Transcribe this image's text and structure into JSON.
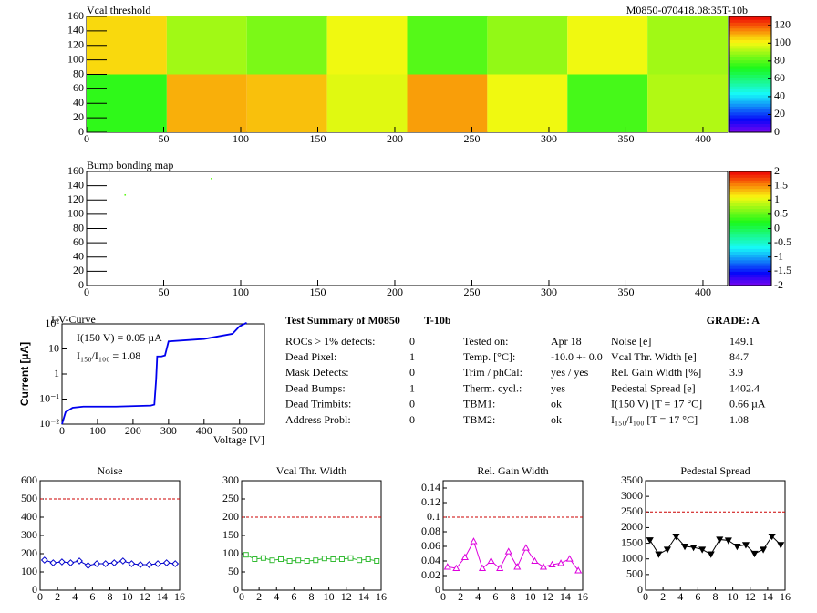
{
  "header": {
    "title": "M0850-070418.08:35T-10b"
  },
  "chart_data": [
    {
      "type": "heatmap",
      "title": "Vcal threshold",
      "xbins": [
        0,
        52,
        104,
        156,
        208,
        260,
        312,
        364,
        416
      ],
      "ybins": [
        0,
        80,
        160
      ],
      "values": [
        [
          75,
          110,
          108,
          98,
          112,
          100,
          78,
          92
        ],
        [
          105,
          90,
          85,
          100,
          80,
          88,
          100,
          90
        ]
      ],
      "zlim": [
        0,
        130
      ],
      "zticks": [
        0,
        20,
        40,
        60,
        80,
        100,
        120
      ],
      "xlim": [
        0,
        416
      ],
      "xticks": [
        0,
        50,
        100,
        150,
        200,
        250,
        300,
        350,
        400
      ],
      "ylim": [
        0,
        160
      ],
      "yticks": [
        0,
        20,
        40,
        60,
        80,
        100,
        120,
        140,
        160
      ]
    },
    {
      "type": "heatmap",
      "title": "Bump bonding map",
      "points": {
        "x": [
          25,
          81
        ],
        "y": [
          127,
          150
        ],
        "z": [
          0.5,
          0.5
        ]
      },
      "zlim": [
        -2,
        2
      ],
      "zticks": [
        -2,
        -1.5,
        -1,
        -0.5,
        0,
        0.5,
        1,
        1.5,
        2
      ],
      "xlim": [
        0,
        416
      ],
      "xticks": [
        0,
        50,
        100,
        150,
        200,
        250,
        300,
        350,
        400
      ],
      "ylim": [
        0,
        160
      ],
      "yticks": [
        0,
        20,
        40,
        60,
        80,
        100,
        120,
        140,
        160
      ]
    },
    {
      "type": "line",
      "title": "I-V-Curve",
      "log_y": true,
      "x_label": "Voltage [V]",
      "y_label": "Current [µA]",
      "annotations": [
        "I(150 V) = 0.05 µA",
        "I₁₅₀/I₁₀₀ =  1.08"
      ],
      "series": [
        {
          "color": "#0000ee",
          "x": [
            0,
            10,
            30,
            60,
            150,
            250,
            260,
            265,
            268,
            280,
            290,
            300,
            400,
            480,
            500,
            520
          ],
          "values": [
            0.01,
            0.03,
            0.045,
            0.05,
            0.05,
            0.055,
            0.06,
            0.6,
            5,
            5,
            5.5,
            20,
            25,
            40,
            80,
            110
          ]
        }
      ],
      "xlim": [
        0,
        570
      ],
      "xticks": [
        0,
        100,
        200,
        300,
        400,
        500
      ],
      "ylim": [
        0.01,
        100
      ],
      "yticks": [
        {
          "value": 0.01,
          "label": "10⁻²"
        },
        {
          "value": 0.1,
          "label": "10⁻¹"
        },
        {
          "value": 1,
          "label": "1"
        },
        {
          "value": 10,
          "label": "10"
        },
        {
          "value": 100,
          "label": "10²"
        }
      ]
    },
    {
      "type": "line",
      "title": "Noise",
      "reference_line": 500,
      "series": [
        {
          "color": "#0000cc",
          "marker": "diamond",
          "x": [
            0.5,
            1.5,
            2.5,
            3.5,
            4.5,
            5.5,
            6.5,
            7.5,
            8.5,
            9.5,
            10.5,
            11.5,
            12.5,
            13.5,
            14.5,
            15.5
          ],
          "values": [
            165,
            150,
            155,
            150,
            160,
            135,
            145,
            145,
            150,
            160,
            145,
            140,
            140,
            145,
            150,
            145
          ]
        }
      ],
      "xlim": [
        0,
        16
      ],
      "xticks": [
        0,
        2,
        4,
        6,
        8,
        10,
        12,
        14,
        16
      ],
      "ylim": [
        0,
        600
      ],
      "yticks": [
        0,
        100,
        200,
        300,
        400,
        500,
        600
      ]
    },
    {
      "type": "line",
      "title": "Vcal Thr. Width",
      "reference_line": 200,
      "series": [
        {
          "color": "#33bb33",
          "marker": "square",
          "x": [
            0.5,
            1.5,
            2.5,
            3.5,
            4.5,
            5.5,
            6.5,
            7.5,
            8.5,
            9.5,
            10.5,
            11.5,
            12.5,
            13.5,
            14.5,
            15.5
          ],
          "values": [
            97,
            85,
            88,
            82,
            85,
            80,
            82,
            80,
            82,
            87,
            85,
            85,
            88,
            82,
            85,
            80
          ]
        }
      ],
      "xlim": [
        0,
        16
      ],
      "xticks": [
        0,
        2,
        4,
        6,
        8,
        10,
        12,
        14,
        16
      ],
      "ylim": [
        0,
        300
      ],
      "yticks": [
        0,
        50,
        100,
        150,
        200,
        250,
        300
      ]
    },
    {
      "type": "line",
      "title": "Rel. Gain Width",
      "reference_line": 0.1,
      "series": [
        {
          "color": "#dd00dd",
          "marker": "triangle",
          "x": [
            0.5,
            1.5,
            2.5,
            3.5,
            4.5,
            5.5,
            6.5,
            7.5,
            8.5,
            9.5,
            10.5,
            11.5,
            12.5,
            13.5,
            14.5,
            15.5
          ],
          "values": [
            0.032,
            0.03,
            0.045,
            0.067,
            0.03,
            0.04,
            0.03,
            0.053,
            0.032,
            0.058,
            0.04,
            0.032,
            0.035,
            0.037,
            0.043,
            0.027
          ]
        }
      ],
      "xlim": [
        0,
        16
      ],
      "xticks": [
        0,
        2,
        4,
        6,
        8,
        10,
        12,
        14,
        16
      ],
      "ylim": [
        0,
        0.15
      ],
      "yticks": [
        0,
        0.02,
        0.04,
        0.06,
        0.08,
        0.1,
        0.12,
        0.14
      ]
    },
    {
      "type": "line",
      "title": "Pedestal Spread",
      "reference_line": 2500,
      "series": [
        {
          "color": "#000000",
          "marker": "triangle-down",
          "x": [
            0.5,
            1.5,
            2.5,
            3.5,
            4.5,
            5.5,
            6.5,
            7.5,
            8.5,
            9.5,
            10.5,
            11.5,
            12.5,
            13.5,
            14.5,
            15.5
          ],
          "values": [
            1600,
            1150,
            1300,
            1720,
            1400,
            1370,
            1300,
            1150,
            1620,
            1590,
            1400,
            1450,
            1170,
            1300,
            1720,
            1450
          ]
        }
      ],
      "xlim": [
        0,
        16
      ],
      "xticks": [
        0,
        2,
        4,
        6,
        8,
        10,
        12,
        14,
        16
      ],
      "ylim": [
        0,
        3500
      ],
      "yticks": [
        0,
        500,
        1000,
        1500,
        2000,
        2500,
        3000,
        3500
      ]
    }
  ],
  "summary": {
    "title": "Test Summary of M0850",
    "module": "T-10b",
    "grade": "GRADE:  A",
    "left": [
      [
        "ROCs > 1% defects:",
        "0"
      ],
      [
        "Dead Pixel:",
        "1"
      ],
      [
        "Mask Defects:",
        "0"
      ],
      [
        "Dead Bumps:",
        "1"
      ],
      [
        "Dead Trimbits:",
        "0"
      ],
      [
        "Address Probl:",
        "0"
      ]
    ],
    "middle": [
      [
        "Tested on:",
        "Apr 18"
      ],
      [
        "Temp. [°C]:",
        "-10.0 +- 0.0"
      ],
      [
        "Trim / phCal:",
        "yes / yes"
      ],
      [
        "Therm. cycl.:",
        "yes"
      ],
      [
        "TBM1:",
        "ok"
      ],
      [
        "TBM2:",
        "ok"
      ]
    ],
    "right": [
      [
        "Noise [e]",
        "149.1"
      ],
      [
        "Vcal Thr. Width [e]",
        "84.7"
      ],
      [
        "Rel. Gain Width [%]",
        "3.9"
      ],
      [
        "Pedestal Spread [e]",
        "1402.4"
      ],
      [
        "I(150 V) [T = 17 °C]",
        "0.66 µA"
      ],
      [
        "I₁₅₀/I₁₀₀  [T = 17 °C]",
        "1.08"
      ]
    ]
  }
}
